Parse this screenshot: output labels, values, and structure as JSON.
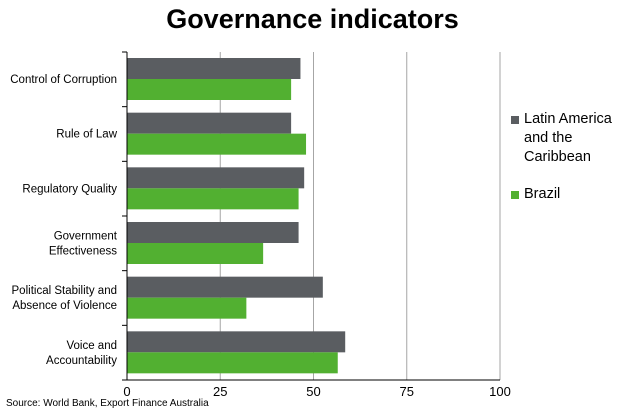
{
  "chart_data": {
    "type": "bar",
    "orientation": "horizontal",
    "title": "Governance indicators",
    "categories": [
      [
        "Control of Corruption"
      ],
      [
        "Rule of Law"
      ],
      [
        "Regulatory Quality"
      ],
      [
        "Government",
        "Effectiveness"
      ],
      [
        "Political Stability and",
        "Absence of Violence"
      ],
      [
        "Voice and",
        "Accountability"
      ]
    ],
    "series": [
      {
        "name": "Latin America and the Caribbean",
        "color": "#5a5d61",
        "values": [
          46.5,
          44,
          47.5,
          46,
          52.5,
          58.5
        ]
      },
      {
        "name": "Brazil",
        "color": "#52b031",
        "values": [
          44,
          48,
          46,
          36.5,
          32,
          56.5
        ]
      }
    ],
    "xlim": [
      0,
      100
    ],
    "xticks": [
      0,
      25,
      50,
      75,
      100
    ],
    "grid": true,
    "legend_position": "right",
    "xlabel": "",
    "ylabel": ""
  },
  "source": "Source: World Bank, Export Finance Australia"
}
